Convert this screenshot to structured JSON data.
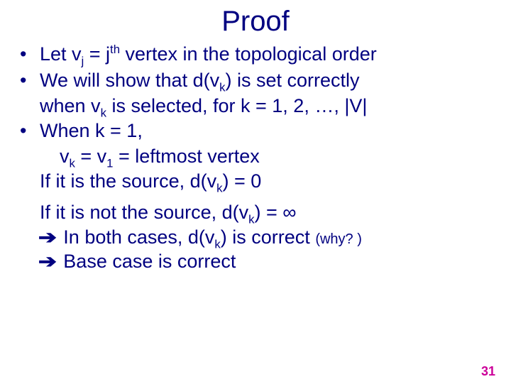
{
  "colors": {
    "text": "#000080",
    "slidenum": "#cc0099",
    "background": "#ffffff"
  },
  "title": "Proof",
  "lines": {
    "l1a": "Let v",
    "l1sub": "j",
    "l1b": " = j",
    "l1sup": "th",
    "l1c": " vertex in the topological order",
    "l2a": "We will show that d(v",
    "l2sub": "k",
    "l2b": ") is set correctly",
    "l3a": "when v",
    "l3sub": "k",
    "l3b": " is selected, for k = 1, 2, …, |V|",
    "l4a": "When k = 1,",
    "l5a": "v",
    "l5s1": "k",
    "l5b": " = v",
    "l5s2": "1",
    "l5c": " = leftmost vertex",
    "l6a": "If it is the source, d(v",
    "l6sub": "k",
    "l6b": ") = 0",
    "l7a": "If it is not the source, d(v",
    "l7sub": "k",
    "l7b": ") = ",
    "l7inf": "∞",
    "l8arrow": "➔",
    "l8a": " In both cases, d(v",
    "l8sub": "k",
    "l8b": ") is correct  ",
    "l8why": "(why? )",
    "l9arrow": "➔",
    "l9a": " Base case is correct"
  },
  "slide_number": "31"
}
